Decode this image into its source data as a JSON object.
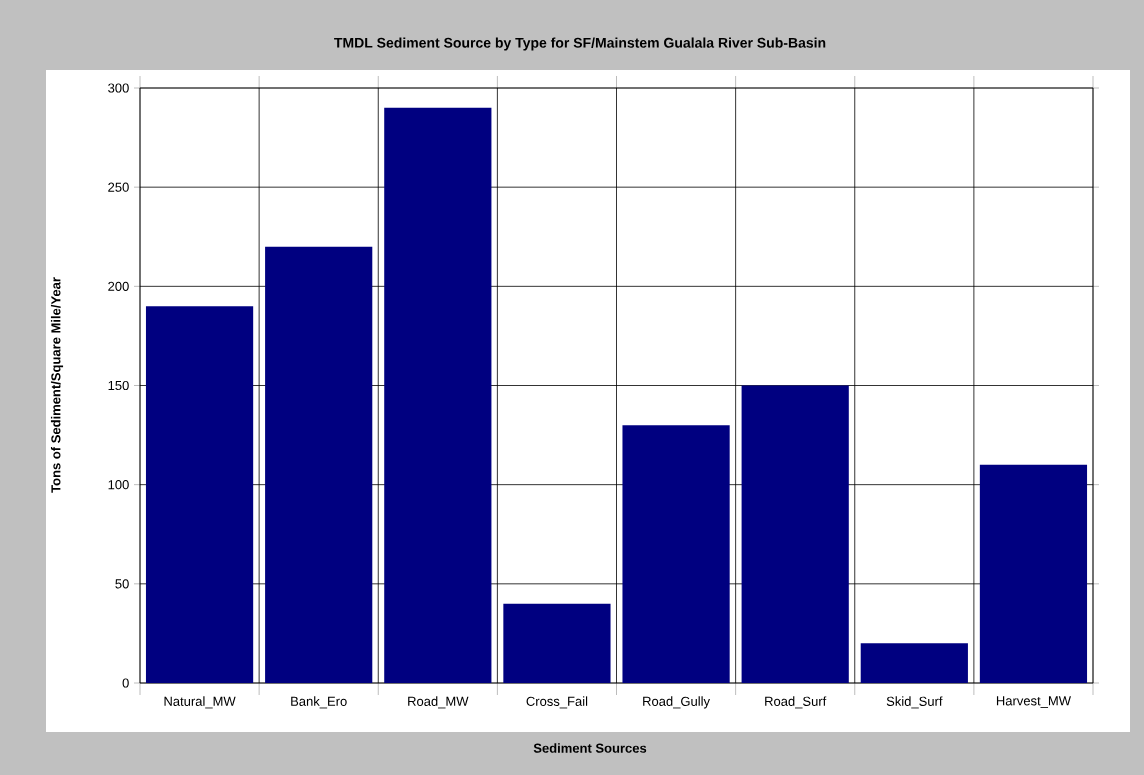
{
  "chart_data": {
    "type": "bar",
    "title": "TMDL Sediment Source by Type for SF/Mainstem Gualala River Sub-Basin",
    "xlabel": "Sediment Sources",
    "ylabel": "Tons of Sediment/Square Mile/Year",
    "categories": [
      "Natural_MW",
      "Bank_Ero",
      "Road_MW",
      "Cross_Fail",
      "Road_Gully",
      "Road_Surf",
      "Skid_Surf",
      "Harvest_MW"
    ],
    "values": [
      190,
      220,
      290,
      40,
      130,
      150,
      20,
      110
    ],
    "color": "#000080",
    "ylim": [
      0,
      300
    ],
    "yticks": [
      0,
      50,
      100,
      150,
      200,
      250,
      300
    ],
    "grid": true
  }
}
